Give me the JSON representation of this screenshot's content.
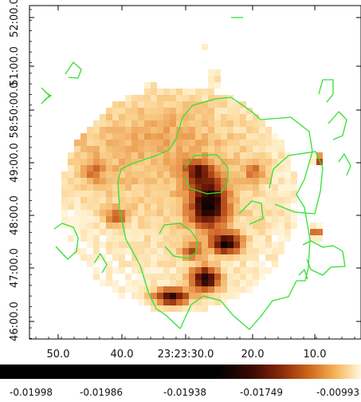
{
  "chart_data": {
    "type": "heatmap",
    "title": "",
    "xlabel": "",
    "ylabel": "",
    "x_ticks": [
      "50.0",
      "40.0",
      "23:23:30.0",
      "20.0",
      "10.0"
    ],
    "y_ticks": [
      "46:00.0",
      "47:00.0",
      "48:00.0",
      "49:00.0",
      "58:50:00.0",
      "51:00.0",
      "52:00.0"
    ],
    "colorbar": {
      "colormap": "heat",
      "ticks": [
        "-0.01998",
        "-0.01986",
        "-0.01938",
        "-0.01749",
        "-0.00993"
      ]
    },
    "contour_color": "#33e033",
    "grid_visible": false
  }
}
